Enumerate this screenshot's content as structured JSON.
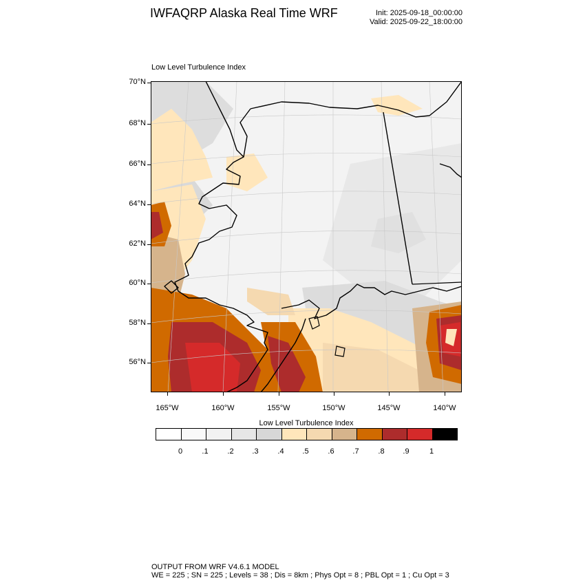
{
  "header": {
    "title": "IWFAQRP Alaska Real Time WRF",
    "init": "Init: 2025-09-18_00:00:00",
    "valid": "Valid: 2025-09-22_18:00:00"
  },
  "panel": {
    "title": "Low Level Turbulence Index"
  },
  "axes": {
    "lat_labels": [
      "70°N",
      "68°N",
      "66°N",
      "64°N",
      "62°N",
      "60°N",
      "58°N",
      "56°N"
    ],
    "lon_labels": [
      "165°W",
      "160°W",
      "155°W",
      "150°W",
      "145°W",
      "140°W"
    ]
  },
  "colorbar": {
    "title": "Low Level Turbulence Index",
    "colors": [
      "#ffffff",
      "#f9f9f9",
      "#f2f2f2",
      "#e6e6e6",
      "#d7d7d7",
      "#ffe6bb",
      "#f5d9b0",
      "#d6b48c",
      "#d06a00",
      "#ad2c2c",
      "#d52a2a",
      "#000000"
    ],
    "tick_labels": [
      "0",
      ".1",
      ".2",
      ".3",
      ".4",
      ".5",
      ".6",
      ".7",
      ".8",
      ".9",
      "1"
    ]
  },
  "footer": {
    "line1": "OUTPUT FROM WRF V4.6.1 MODEL",
    "line2": "WE = 225 ; SN = 225 ; Levels = 38 ; Dis = 8km ; Phys Opt = 8 ; PBL Opt = 1 ; Cu Opt = 3"
  }
}
